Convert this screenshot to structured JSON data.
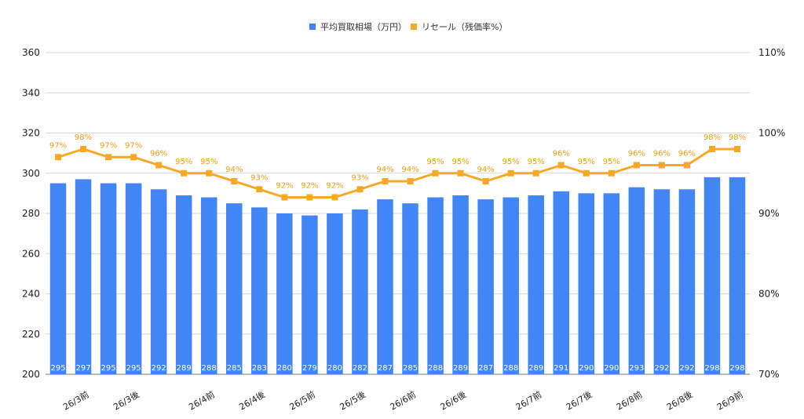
{
  "chart_data": {
    "type": "bar",
    "legend": [
      {
        "name": "平均買取相場（万円）",
        "color": "#4285f4"
      },
      {
        "name": "リセール（残価率%）",
        "color": "#f9a825"
      }
    ],
    "legend_position": "top-center",
    "grid": true,
    "left_axis": {
      "min": 200,
      "max": 360,
      "ticks": [
        "200",
        "220",
        "240",
        "260",
        "280",
        "300",
        "320",
        "340",
        "360"
      ]
    },
    "right_axis": {
      "min": 70,
      "max": 110,
      "ticks": [
        "70%",
        "80%",
        "90%",
        "100%",
        "110%"
      ]
    },
    "series": [
      {
        "name": "平均買取相場（万円）",
        "type": "bar",
        "axis": "left",
        "color": "#4285f4",
        "values": [
          295,
          297,
          295,
          295,
          292,
          289,
          288,
          285,
          283,
          280,
          279,
          280,
          282,
          287,
          285,
          288,
          289,
          287,
          288,
          289,
          291,
          290,
          290,
          293,
          292,
          292,
          298,
          298
        ],
        "labels": [
          "295",
          "297",
          "295",
          "295",
          "292",
          "289",
          "288",
          "285",
          "283",
          "280",
          "279",
          "280",
          "282",
          "287",
          "285",
          "288",
          "289",
          "287",
          "288",
          "289",
          "291",
          "290",
          "290",
          "293",
          "292",
          "292",
          "298",
          "298"
        ]
      },
      {
        "name": "リセール（残価率%）",
        "type": "line",
        "axis": "right",
        "color": "#f9a825",
        "values": [
          97,
          98,
          97,
          97,
          96,
          95,
          95,
          94,
          93,
          92,
          92,
          92,
          93,
          94,
          94,
          95,
          95,
          94,
          95,
          95,
          96,
          95,
          95,
          96,
          96,
          96,
          98,
          98
        ],
        "labels": [
          "97%",
          "98%",
          "97%",
          "97%",
          "96%",
          "95%",
          "95%",
          "94%",
          "93%",
          "92%",
          "92%",
          "92%",
          "93%",
          "94%",
          "94%",
          "95%",
          "95%",
          "94%",
          "95%",
          "95%",
          "96%",
          "95%",
          "95%",
          "96%",
          "96%",
          "96%",
          "98%",
          "98%"
        ]
      }
    ],
    "x_labels": [
      {
        "index": 1,
        "text": "26/3前"
      },
      {
        "index": 3,
        "text": "26/3後"
      },
      {
        "index": 6,
        "text": "26/4前"
      },
      {
        "index": 8,
        "text": "26/4後"
      },
      {
        "index": 10,
        "text": "26/5前"
      },
      {
        "index": 12,
        "text": "26/5後"
      },
      {
        "index": 14,
        "text": "26/6前"
      },
      {
        "index": 16,
        "text": "26/6後"
      },
      {
        "index": 19,
        "text": "26/7前"
      },
      {
        "index": 21,
        "text": "26/7後"
      },
      {
        "index": 23,
        "text": "26/8前"
      },
      {
        "index": 25,
        "text": "26/8後"
      },
      {
        "index": 27,
        "text": "26/9前"
      }
    ]
  }
}
